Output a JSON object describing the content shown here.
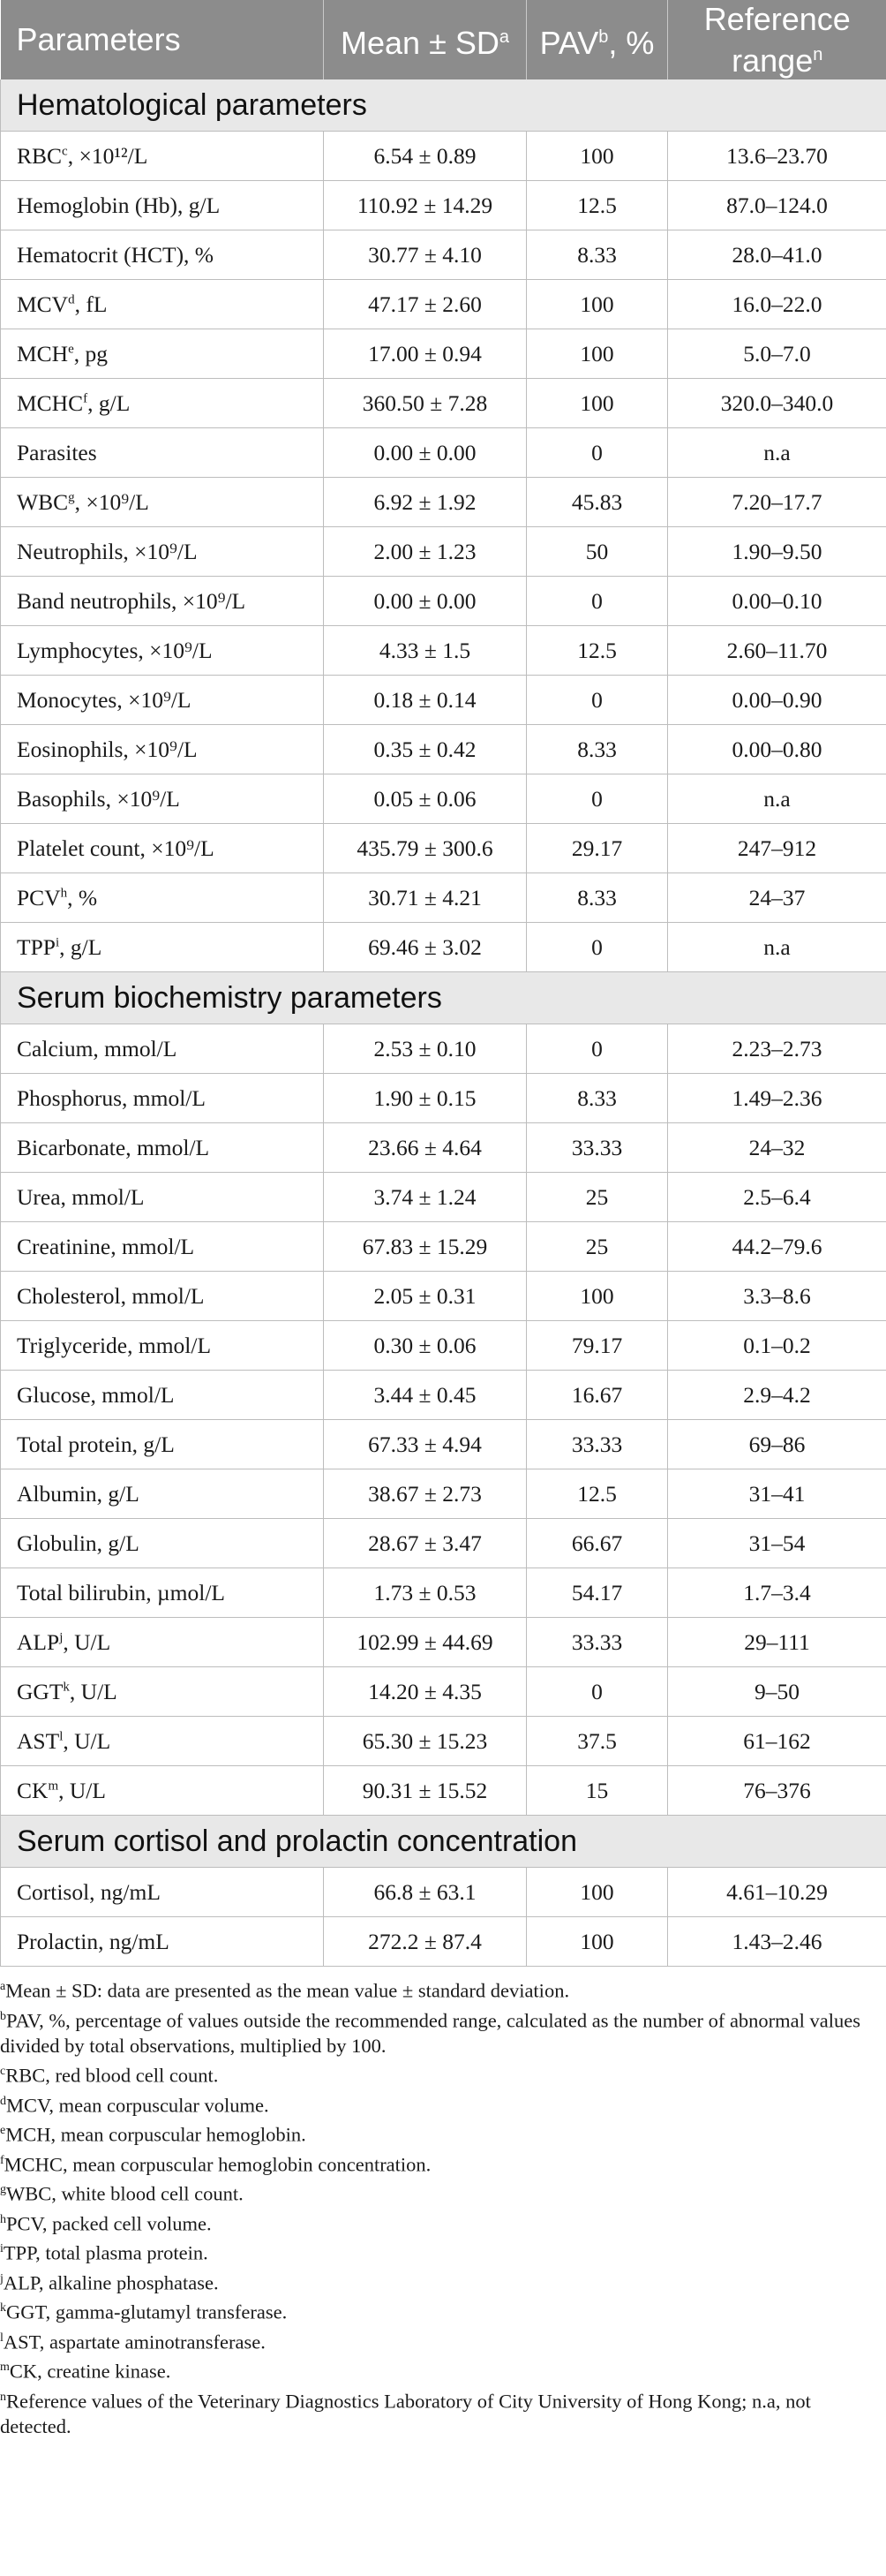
{
  "header": {
    "parameters": "Parameters",
    "mean": "Mean ± SD",
    "mean_sup": "a",
    "pav": "PAV",
    "pav_sup": "b",
    "pav_unit": ", %",
    "reference": "Reference range",
    "reference_sup": "n"
  },
  "sections": [
    {
      "title": "Hematological parameters",
      "rows": [
        {
          "label": "RBC",
          "sup": "c",
          "unit": ", ×10¹²/L",
          "mean": "6.54 ± 0.89",
          "pav": "100",
          "ref": "13.6–23.70"
        },
        {
          "label": "Hemoglobin (Hb), g/L",
          "sup": "",
          "unit": "",
          "mean": "110.92 ± 14.29",
          "pav": "12.5",
          "ref": "87.0–124.0"
        },
        {
          "label": "Hematocrit (HCT), %",
          "sup": "",
          "unit": "",
          "mean": "30.77 ± 4.10",
          "pav": "8.33",
          "ref": "28.0–41.0"
        },
        {
          "label": "MCV",
          "sup": "d",
          "unit": ", fL",
          "mean": "47.17 ± 2.60",
          "pav": "100",
          "ref": "16.0–22.0"
        },
        {
          "label": "MCH",
          "sup": "e",
          "unit": ", pg",
          "mean": "17.00 ± 0.94",
          "pav": "100",
          "ref": "5.0–7.0"
        },
        {
          "label": "MCHC",
          "sup": "f",
          "unit": ", g/L",
          "mean": "360.50 ± 7.28",
          "pav": "100",
          "ref": "320.0–340.0"
        },
        {
          "label": "Parasites",
          "sup": "",
          "unit": "",
          "mean": "0.00 ± 0.00",
          "pav": "0",
          "ref": "n.a"
        },
        {
          "label": "WBC",
          "sup": "g",
          "unit": ", ×10⁹/L",
          "mean": "6.92 ± 1.92",
          "pav": "45.83",
          "ref": "7.20–17.7"
        },
        {
          "label": "Neutrophils, ×10⁹/L",
          "sup": "",
          "unit": "",
          "mean": "2.00 ± 1.23",
          "pav": "50",
          "ref": "1.90–9.50"
        },
        {
          "label": "Band neutrophils, ×10⁹/L",
          "sup": "",
          "unit": "",
          "mean": "0.00 ± 0.00",
          "pav": "0",
          "ref": "0.00–0.10"
        },
        {
          "label": "Lymphocytes, ×10⁹/L",
          "sup": "",
          "unit": "",
          "mean": "4.33 ± 1.5",
          "pav": "12.5",
          "ref": "2.60–11.70"
        },
        {
          "label": "Monocytes, ×10⁹/L",
          "sup": "",
          "unit": "",
          "mean": "0.18 ± 0.14",
          "pav": "0",
          "ref": "0.00–0.90"
        },
        {
          "label": "Eosinophils, ×10⁹/L",
          "sup": "",
          "unit": "",
          "mean": "0.35 ± 0.42",
          "pav": "8.33",
          "ref": "0.00–0.80"
        },
        {
          "label": "Basophils, ×10⁹/L",
          "sup": "",
          "unit": "",
          "mean": "0.05 ± 0.06",
          "pav": "0",
          "ref": "n.a"
        },
        {
          "label": "Platelet count, ×10⁹/L",
          "sup": "",
          "unit": "",
          "mean": "435.79 ± 300.6",
          "pav": "29.17",
          "ref": "247–912"
        },
        {
          "label": "PCV",
          "sup": "h",
          "unit": ", %",
          "mean": "30.71 ± 4.21",
          "pav": "8.33",
          "ref": "24–37"
        },
        {
          "label": "TPP",
          "sup": "i",
          "unit": ", g/L",
          "mean": "69.46 ± 3.02",
          "pav": "0",
          "ref": "n.a"
        }
      ]
    },
    {
      "title": "Serum biochemistry parameters",
      "rows": [
        {
          "label": "Calcium, mmol/L",
          "sup": "",
          "unit": "",
          "mean": "2.53 ± 0.10",
          "pav": "0",
          "ref": "2.23–2.73"
        },
        {
          "label": "Phosphorus, mmol/L",
          "sup": "",
          "unit": "",
          "mean": "1.90 ± 0.15",
          "pav": "8.33",
          "ref": "1.49–2.36"
        },
        {
          "label": "Bicarbonate, mmol/L",
          "sup": "",
          "unit": "",
          "mean": "23.66 ± 4.64",
          "pav": "33.33",
          "ref": "24–32"
        },
        {
          "label": "Urea, mmol/L",
          "sup": "",
          "unit": "",
          "mean": "3.74 ± 1.24",
          "pav": "25",
          "ref": "2.5–6.4"
        },
        {
          "label": "Creatinine, mmol/L",
          "sup": "",
          "unit": "",
          "mean": "67.83 ± 15.29",
          "pav": "25",
          "ref": "44.2–79.6"
        },
        {
          "label": "Cholesterol, mmol/L",
          "sup": "",
          "unit": "",
          "mean": "2.05 ± 0.31",
          "pav": "100",
          "ref": "3.3–8.6"
        },
        {
          "label": "Triglyceride, mmol/L",
          "sup": "",
          "unit": "",
          "mean": "0.30 ± 0.06",
          "pav": "79.17",
          "ref": "0.1–0.2"
        },
        {
          "label": "Glucose, mmol/L",
          "sup": "",
          "unit": "",
          "mean": "3.44 ± 0.45",
          "pav": "16.67",
          "ref": "2.9–4.2"
        },
        {
          "label": "Total protein, g/L",
          "sup": "",
          "unit": "",
          "mean": "67.33 ± 4.94",
          "pav": "33.33",
          "ref": "69–86"
        },
        {
          "label": "Albumin, g/L",
          "sup": "",
          "unit": "",
          "mean": "38.67 ± 2.73",
          "pav": "12.5",
          "ref": "31–41"
        },
        {
          "label": "Globulin, g/L",
          "sup": "",
          "unit": "",
          "mean": "28.67 ± 3.47",
          "pav": "66.67",
          "ref": "31–54"
        },
        {
          "label": "Total bilirubin, µmol/L",
          "sup": "",
          "unit": "",
          "mean": "1.73 ± 0.53",
          "pav": "54.17",
          "ref": "1.7–3.4"
        },
        {
          "label": "ALP",
          "sup": "j",
          "unit": ", U/L",
          "mean": "102.99 ± 44.69",
          "pav": "33.33",
          "ref": "29–111"
        },
        {
          "label": "GGT",
          "sup": "k",
          "unit": ", U/L",
          "mean": "14.20 ± 4.35",
          "pav": "0",
          "ref": "9–50"
        },
        {
          "label": "AST",
          "sup": "l",
          "unit": ", U/L",
          "mean": "65.30 ± 15.23",
          "pav": "37.5",
          "ref": "61–162"
        },
        {
          "label": "CK",
          "sup": "m",
          "unit": ", U/L",
          "mean": "90.31 ± 15.52",
          "pav": "15",
          "ref": "76–376"
        }
      ]
    },
    {
      "title": "Serum cortisol and prolactin concentration",
      "rows": [
        {
          "label": "Cortisol, ng/mL",
          "sup": "",
          "unit": "",
          "mean": "66.8 ± 63.1",
          "pav": "100",
          "ref": "4.61–10.29"
        },
        {
          "label": "Prolactin, ng/mL",
          "sup": "",
          "unit": "",
          "mean": "272.2 ± 87.4",
          "pav": "100",
          "ref": "1.43–2.46"
        }
      ]
    }
  ],
  "footnotes": [
    {
      "mark": "a",
      "text": "Mean ± SD: data are presented as the mean value ± standard deviation."
    },
    {
      "mark": "b",
      "text": "PAV, %, percentage of values outside the recommended range, calculated as the number of abnormal values divided by total observations, multiplied by 100."
    },
    {
      "mark": "c",
      "text": "RBC, red blood cell count."
    },
    {
      "mark": "d",
      "text": "MCV, mean corpuscular volume."
    },
    {
      "mark": "e",
      "text": "MCH, mean corpuscular hemoglobin."
    },
    {
      "mark": "f",
      "text": "MCHC, mean corpuscular hemoglobin concentration."
    },
    {
      "mark": "g",
      "text": "WBC, white blood cell count."
    },
    {
      "mark": "h",
      "text": "PCV, packed cell volume."
    },
    {
      "mark": "i",
      "text": "TPP, total plasma protein."
    },
    {
      "mark": "j",
      "text": "ALP, alkaline phosphatase."
    },
    {
      "mark": "k",
      "text": "GGT, gamma-glutamyl transferase."
    },
    {
      "mark": "l",
      "text": "AST, aspartate aminotransferase."
    },
    {
      "mark": "m",
      "text": "CK, creatine kinase."
    },
    {
      "mark": "n",
      "text": "Reference values of the Veterinary Diagnostics Laboratory of City University of Hong Kong; n.a, not detected."
    }
  ]
}
